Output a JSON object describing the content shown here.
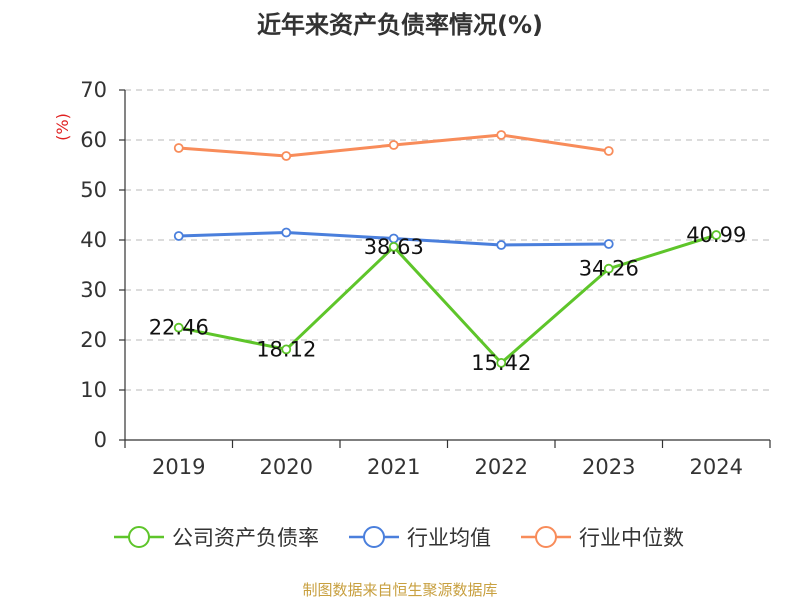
{
  "chart_data": {
    "type": "line",
    "title": "近年来资产负债率情况(%)",
    "ylabel": "(%)",
    "categories": [
      "2019",
      "2020",
      "2021",
      "2022",
      "2023",
      "2024"
    ],
    "yticks": [
      "0",
      "10",
      "20",
      "30",
      "40",
      "50",
      "60",
      "70"
    ],
    "ylim": [
      0,
      70
    ],
    "grid": true,
    "legend_position": "bottom",
    "series": [
      {
        "name": "公司资产负债率",
        "color": "#5ec52a",
        "values": [
          22.46,
          18.12,
          38.63,
          15.42,
          34.26,
          40.99
        ],
        "labels": [
          "22.46",
          "18.12",
          "38.63",
          "15.42",
          "34.26",
          "40.99"
        ]
      },
      {
        "name": "行业均值",
        "color": "#4a7fdc",
        "values": [
          40.8,
          41.5,
          40.3,
          39.0,
          39.2,
          null
        ]
      },
      {
        "name": "行业中位数",
        "color": "#f88c5a",
        "values": [
          58.4,
          56.8,
          59.0,
          61.0,
          57.8,
          null
        ]
      }
    ]
  },
  "footer": {
    "source": "制图数据来自恒生聚源数据库",
    "color": "#c8a040"
  }
}
